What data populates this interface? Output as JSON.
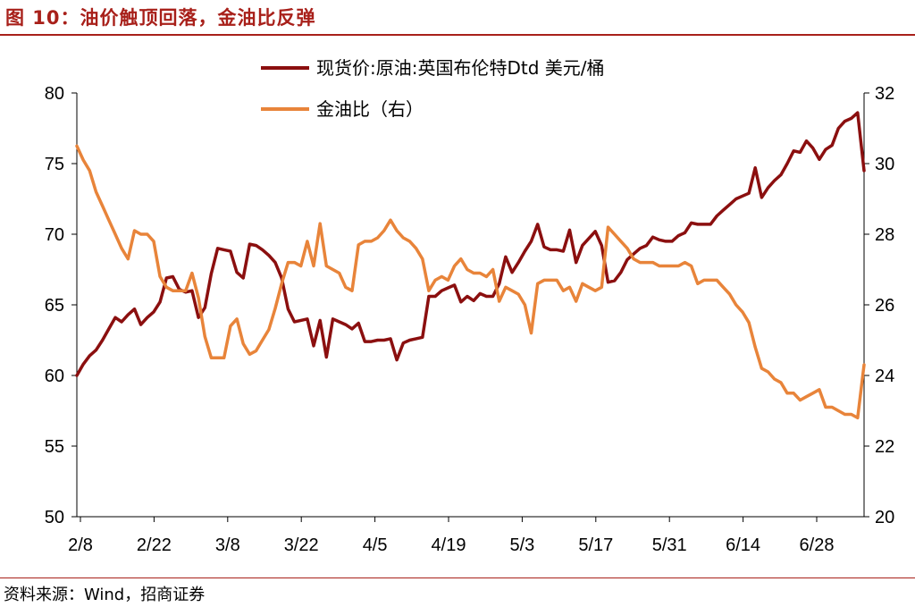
{
  "header": {
    "title": "图 10：油价触顶回落，金油比反弹"
  },
  "footer": {
    "source": "资料来源：Wind，招商证券"
  },
  "colors": {
    "accent": "#a8201a",
    "brent": "#8b0f0f",
    "gold_oil": "#e8843a"
  },
  "chart_data": {
    "type": "line",
    "title": "",
    "x_ticks": [
      "2/8",
      "2/22",
      "3/8",
      "3/22",
      "4/5",
      "4/19",
      "5/3",
      "5/17",
      "5/31",
      "6/14",
      "6/28"
    ],
    "y_left": {
      "range": [
        50,
        80
      ],
      "ticks": [
        80,
        75,
        70,
        65,
        60,
        55,
        50
      ]
    },
    "y_right": {
      "range": [
        20,
        32
      ],
      "ticks": [
        32,
        30,
        28,
        26,
        24,
        22,
        20
      ]
    },
    "legend_position": "top-center",
    "series": [
      {
        "name": "现货价:原油:英国布伦特Dtd 美元/桶",
        "axis": "left",
        "points": [
          [
            0,
            60
          ],
          [
            1,
            60.8
          ],
          [
            2,
            61.4
          ],
          [
            3,
            61.8
          ],
          [
            4,
            62.5
          ],
          [
            5,
            63.3
          ],
          [
            6,
            64.1
          ],
          [
            7,
            63.8
          ],
          [
            8,
            64.3
          ],
          [
            9,
            64.7
          ],
          [
            10,
            63.6
          ],
          [
            11,
            64.1
          ],
          [
            12,
            64.5
          ],
          [
            13,
            65.2
          ],
          [
            14,
            66.9
          ],
          [
            15,
            67
          ],
          [
            16,
            66.1
          ],
          [
            17,
            65.9
          ],
          [
            18,
            66
          ],
          [
            19,
            64.1
          ],
          [
            20,
            64.8
          ],
          [
            21,
            67.2
          ],
          [
            22,
            69
          ],
          [
            23,
            68.9
          ],
          [
            24,
            68.8
          ],
          [
            25,
            67.3
          ],
          [
            26,
            66.9
          ],
          [
            27,
            69.3
          ],
          [
            28,
            69.2
          ],
          [
            29,
            68.9
          ],
          [
            30,
            68.5
          ],
          [
            31,
            68
          ],
          [
            32,
            66.9
          ],
          [
            33,
            64.7
          ],
          [
            34,
            63.8
          ],
          [
            35,
            63.9
          ],
          [
            36,
            64
          ],
          [
            37,
            62.1
          ],
          [
            38,
            63.9
          ],
          [
            39,
            61.3
          ],
          [
            40,
            64
          ],
          [
            41,
            63.8
          ],
          [
            42,
            63.6
          ],
          [
            43,
            63.3
          ],
          [
            44,
            63.7
          ],
          [
            45,
            62.4
          ],
          [
            46,
            62.4
          ],
          [
            47,
            62.5
          ],
          [
            48,
            62.5
          ],
          [
            49,
            62.6
          ],
          [
            50,
            61.1
          ],
          [
            51,
            62.3
          ],
          [
            52,
            62.5
          ],
          [
            53,
            62.6
          ],
          [
            54,
            62.7
          ],
          [
            55,
            65.6
          ],
          [
            56,
            65.6
          ],
          [
            57,
            66
          ],
          [
            58,
            66.2
          ],
          [
            59,
            66.4
          ],
          [
            60,
            65.2
          ],
          [
            61,
            65.6
          ],
          [
            62,
            65.3
          ],
          [
            63,
            65.8
          ],
          [
            64,
            65.6
          ],
          [
            65,
            65.6
          ],
          [
            66,
            66.5
          ],
          [
            67,
            68.4
          ],
          [
            68,
            67.3
          ],
          [
            69,
            68
          ],
          [
            70,
            68.8
          ],
          [
            71,
            69.5
          ],
          [
            72,
            70.7
          ],
          [
            73,
            69.1
          ],
          [
            74,
            68.9
          ],
          [
            75,
            68.9
          ],
          [
            76,
            68.8
          ],
          [
            77,
            70.3
          ],
          [
            78,
            68
          ],
          [
            79,
            69.2
          ],
          [
            80,
            69.7
          ],
          [
            81,
            70.2
          ],
          [
            82,
            69.2
          ],
          [
            83,
            66.6
          ],
          [
            84,
            66.7
          ],
          [
            85,
            67.3
          ],
          [
            86,
            68.2
          ],
          [
            87,
            68.6
          ],
          [
            88,
            69
          ],
          [
            89,
            69.2
          ],
          [
            90,
            69.8
          ],
          [
            91,
            69.6
          ],
          [
            92,
            69.5
          ],
          [
            93,
            69.5
          ],
          [
            94,
            69.9
          ],
          [
            95,
            70.1
          ],
          [
            96,
            70.8
          ],
          [
            97,
            70.7
          ],
          [
            98,
            70.7
          ],
          [
            99,
            70.7
          ],
          [
            100,
            71.3
          ],
          [
            101,
            71.7
          ],
          [
            102,
            72.1
          ],
          [
            103,
            72.5
          ],
          [
            104,
            72.7
          ],
          [
            105,
            72.9
          ],
          [
            106,
            74.7
          ],
          [
            107,
            72.6
          ],
          [
            108,
            73.3
          ],
          [
            109,
            73.8
          ],
          [
            110,
            74.2
          ],
          [
            111,
            75
          ],
          [
            112,
            75.9
          ],
          [
            113,
            75.8
          ],
          [
            114,
            76.6
          ],
          [
            115,
            76.1
          ],
          [
            116,
            75.3
          ],
          [
            117,
            76
          ],
          [
            118,
            76.3
          ],
          [
            119,
            77.5
          ],
          [
            120,
            78
          ],
          [
            121,
            78.2
          ],
          [
            122,
            78.6
          ],
          [
            123,
            74.5
          ]
        ]
      },
      {
        "name": "金油比（右）",
        "axis": "right",
        "points": [
          [
            0,
            30.5
          ],
          [
            1,
            30.1
          ],
          [
            2,
            29.8
          ],
          [
            3,
            29.2
          ],
          [
            4,
            28.8
          ],
          [
            5,
            28.4
          ],
          [
            6,
            28
          ],
          [
            7,
            27.6
          ],
          [
            8,
            27.3
          ],
          [
            9,
            28.1
          ],
          [
            10,
            28
          ],
          [
            11,
            28
          ],
          [
            12,
            27.8
          ],
          [
            13,
            26.8
          ],
          [
            14,
            26.5
          ],
          [
            15,
            26.4
          ],
          [
            16,
            26.4
          ],
          [
            17,
            26.4
          ],
          [
            18,
            26.9
          ],
          [
            19,
            26.2
          ],
          [
            20,
            25.1
          ],
          [
            21,
            24.5
          ],
          [
            22,
            24.5
          ],
          [
            23,
            24.5
          ],
          [
            24,
            25.4
          ],
          [
            25,
            25.6
          ],
          [
            26,
            24.9
          ],
          [
            27,
            24.6
          ],
          [
            28,
            24.7
          ],
          [
            29,
            25
          ],
          [
            30,
            25.3
          ],
          [
            31,
            25.9
          ],
          [
            32,
            26.6
          ],
          [
            33,
            27.2
          ],
          [
            34,
            27.2
          ],
          [
            35,
            27.1
          ],
          [
            36,
            27.8
          ],
          [
            37,
            27.1
          ],
          [
            38,
            28.3
          ],
          [
            39,
            27.1
          ],
          [
            40,
            27
          ],
          [
            41,
            26.9
          ],
          [
            42,
            26.5
          ],
          [
            43,
            26.4
          ],
          [
            44,
            27.7
          ],
          [
            45,
            27.8
          ],
          [
            46,
            27.8
          ],
          [
            47,
            27.9
          ],
          [
            48,
            28.1
          ],
          [
            49,
            28.4
          ],
          [
            50,
            28.1
          ],
          [
            51,
            27.9
          ],
          [
            52,
            27.8
          ],
          [
            53,
            27.6
          ],
          [
            54,
            27.3
          ],
          [
            55,
            26.4
          ],
          [
            56,
            26.7
          ],
          [
            57,
            26.8
          ],
          [
            58,
            26.7
          ],
          [
            59,
            27.1
          ],
          [
            60,
            27.3
          ],
          [
            61,
            27
          ],
          [
            62,
            26.9
          ],
          [
            63,
            26.9
          ],
          [
            64,
            26.8
          ],
          [
            65,
            27
          ],
          [
            66,
            26.1
          ],
          [
            67,
            26.5
          ],
          [
            68,
            26.4
          ],
          [
            69,
            26.3
          ],
          [
            70,
            26
          ],
          [
            71,
            25.2
          ],
          [
            72,
            26.6
          ],
          [
            73,
            26.7
          ],
          [
            74,
            26.7
          ],
          [
            75,
            26.7
          ],
          [
            76,
            26.4
          ],
          [
            77,
            26.5
          ],
          [
            78,
            26.1
          ],
          [
            79,
            26.6
          ],
          [
            80,
            26.5
          ],
          [
            81,
            26.4
          ],
          [
            82,
            26.5
          ],
          [
            83,
            28.2
          ],
          [
            84,
            28
          ],
          [
            85,
            27.8
          ],
          [
            86,
            27.6
          ],
          [
            87,
            27.3
          ],
          [
            88,
            27.2
          ],
          [
            89,
            27.2
          ],
          [
            90,
            27.2
          ],
          [
            91,
            27.1
          ],
          [
            92,
            27.1
          ],
          [
            93,
            27.1
          ],
          [
            94,
            27.1
          ],
          [
            95,
            27.2
          ],
          [
            96,
            27.1
          ],
          [
            97,
            26.6
          ],
          [
            98,
            26.7
          ],
          [
            99,
            26.7
          ],
          [
            100,
            26.7
          ],
          [
            101,
            26.5
          ],
          [
            102,
            26.3
          ],
          [
            103,
            26
          ],
          [
            104,
            25.8
          ],
          [
            105,
            25.5
          ],
          [
            106,
            24.8
          ],
          [
            107,
            24.2
          ],
          [
            108,
            24.1
          ],
          [
            109,
            23.9
          ],
          [
            110,
            23.8
          ],
          [
            111,
            23.5
          ],
          [
            112,
            23.5
          ],
          [
            113,
            23.3
          ],
          [
            114,
            23.4
          ],
          [
            115,
            23.5
          ],
          [
            116,
            23.6
          ],
          [
            117,
            23.1
          ],
          [
            118,
            23.1
          ],
          [
            119,
            23
          ],
          [
            120,
            22.9
          ],
          [
            121,
            22.9
          ],
          [
            122,
            22.8
          ],
          [
            123,
            24.3
          ]
        ]
      }
    ]
  }
}
